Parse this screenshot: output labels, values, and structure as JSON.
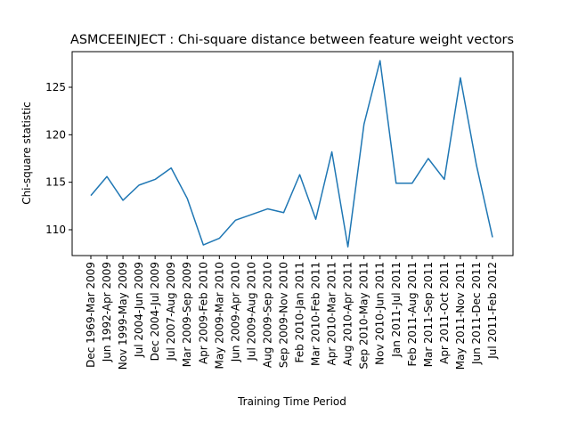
{
  "chart_data": {
    "type": "line",
    "title": "ASMCEEINJECT : Chi-square distance between feature weight vectors",
    "x_label": "Training Time Period",
    "y_label": "Chi-square statistic",
    "categories": [
      "Dec 1969-Mar 2009",
      "Jun 1992-Apr 2009",
      "Nov 1999-May 2009",
      "Jul 2004-Jun 2009",
      "Dec 2004-Jul 2009",
      "Jul 2007-Aug 2009",
      "Mar 2009-Sep 2009",
      "Apr 2009-Feb 2010",
      "May 2009-Mar 2010",
      "Jun 2009-Apr 2010",
      "Jul 2009-Aug 2010",
      "Aug 2009-Sep 2010",
      "Sep 2009-Nov 2010",
      "Feb 2010-Jan 2011",
      "Mar 2010-Feb 2011",
      "Apr 2010-Mar 2011",
      "Aug 2010-Apr 2011",
      "Sep 2010-May 2011",
      "Nov 2010-Jun 2011",
      "Jan 2011-Jul 2011",
      "Feb 2011-Aug 2011",
      "Mar 2011-Sep 2011",
      "Apr 2011-Oct 2011",
      "May 2011-Nov 2011",
      "Jun 2011-Dec 2011",
      "Jul 2011-Feb 2012"
    ],
    "values": [
      113.6,
      115.6,
      113.1,
      114.7,
      115.3,
      116.5,
      113.3,
      108.4,
      109.1,
      111.0,
      111.6,
      112.2,
      111.8,
      115.8,
      111.1,
      118.2,
      108.2,
      121.1,
      127.8,
      114.9,
      114.9,
      117.5,
      115.3,
      126.0,
      116.8,
      109.2
    ],
    "color": "#1f77b4",
    "ylim": [
      107.28,
      128.75
    ],
    "yticks": [
      110,
      115,
      120,
      125
    ],
    "grid": false
  }
}
